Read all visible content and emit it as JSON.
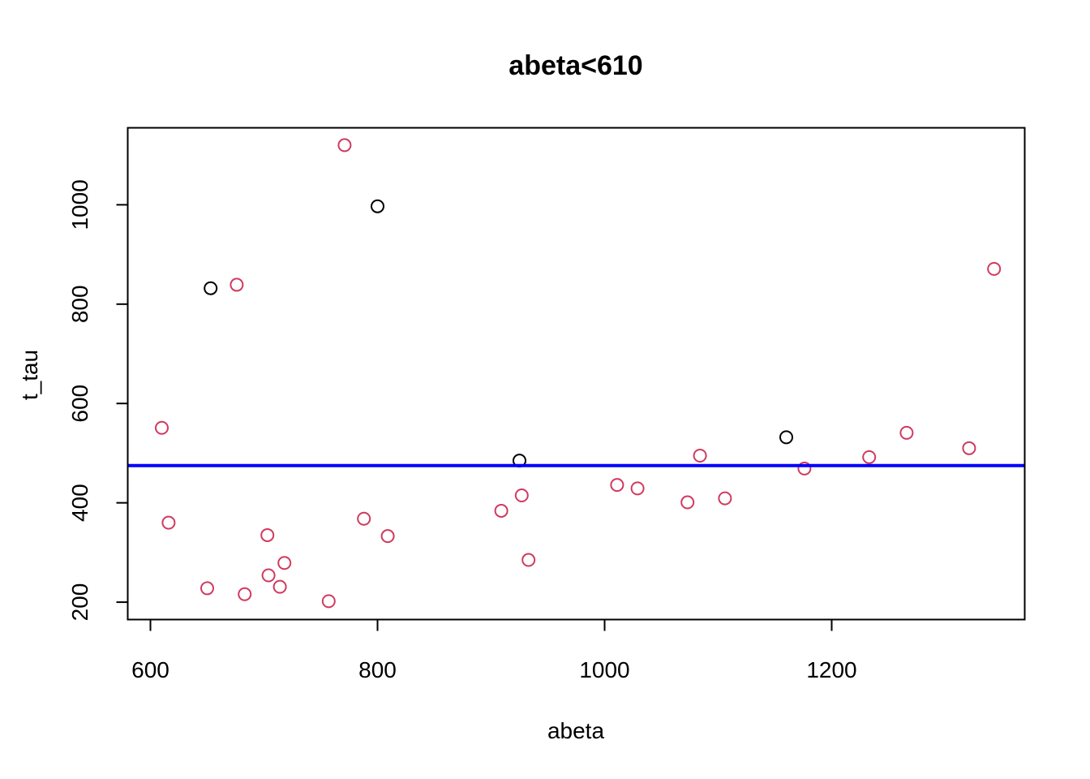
{
  "chart_data": {
    "type": "scatter",
    "title": "abeta<610",
    "xlabel": "abeta",
    "ylabel": "t_tau",
    "xlim": [
      580,
      1370
    ],
    "ylim": [
      165,
      1155
    ],
    "xticks": [
      600,
      800,
      1000,
      1200
    ],
    "yticks": [
      200,
      400,
      600,
      800,
      1000
    ],
    "xtick_labels": [
      "600",
      "800",
      "1000",
      "1200"
    ],
    "ytick_labels": [
      "200",
      "400",
      "600",
      "800",
      "1000"
    ],
    "hline": {
      "y": 475,
      "color": "#0000ff"
    },
    "grid": false,
    "legend": "none",
    "series": [
      {
        "color": "#000000",
        "points": [
          [
            653,
            832
          ],
          [
            800,
            997
          ],
          [
            925,
            485
          ],
          [
            1160,
            532
          ]
        ]
      },
      {
        "color": "#d03a5e",
        "points": [
          [
            771,
            1120
          ],
          [
            676,
            839
          ],
          [
            1343,
            871
          ],
          [
            610,
            551
          ],
          [
            1266,
            541
          ],
          [
            1321,
            510
          ],
          [
            1084,
            495
          ],
          [
            1233,
            492
          ],
          [
            1176,
            469
          ],
          [
            1011,
            436
          ],
          [
            1029,
            429
          ],
          [
            927,
            415
          ],
          [
            1106,
            409
          ],
          [
            1073,
            401
          ],
          [
            909,
            384
          ],
          [
            788,
            368
          ],
          [
            616,
            360
          ],
          [
            703,
            335
          ],
          [
            809,
            333
          ],
          [
            933,
            285
          ],
          [
            718,
            279
          ],
          [
            704,
            254
          ],
          [
            650,
            228
          ],
          [
            714,
            231
          ],
          [
            683,
            216
          ],
          [
            757,
            202
          ]
        ]
      }
    ]
  }
}
